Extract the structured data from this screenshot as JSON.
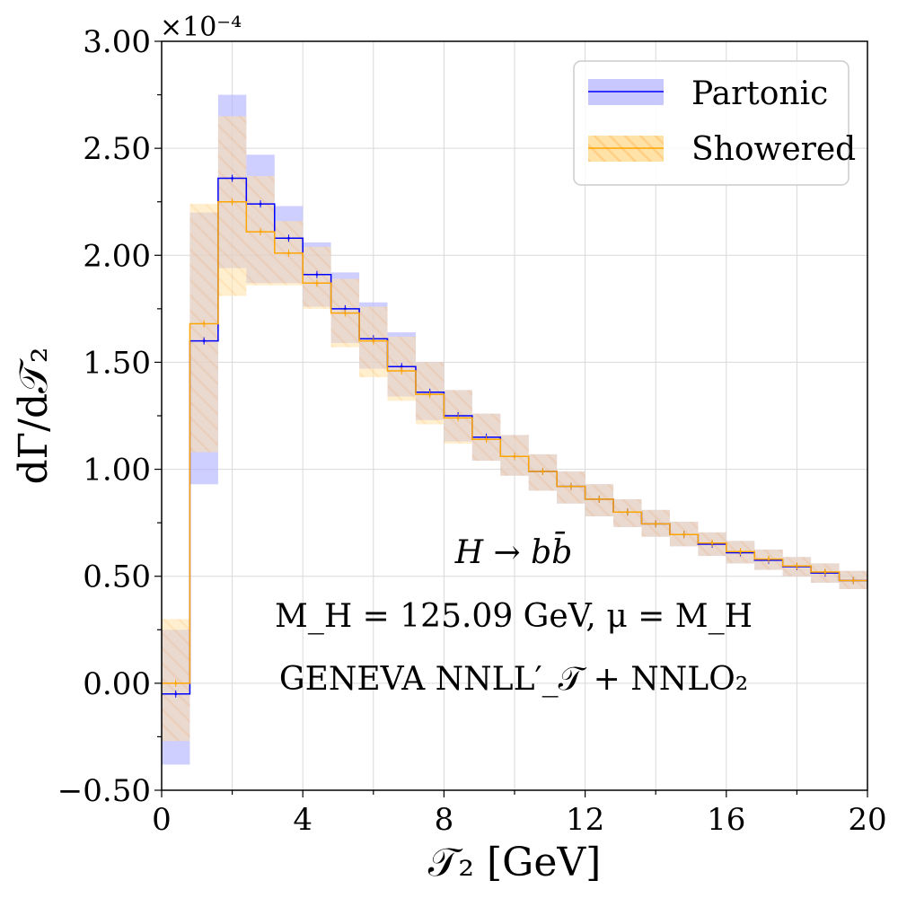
{
  "chart_data": {
    "type": "histogram",
    "multiplier_label": "×10⁻⁴",
    "xlabel": "𝒯₂   [GeV]",
    "ylabel": "dΓ/d𝒯₂",
    "xlim": [
      0,
      20
    ],
    "ylim": [
      -0.5,
      3.0
    ],
    "xticks": [
      0,
      4,
      8,
      12,
      16,
      20
    ],
    "xtick_labels": [
      "0",
      "4",
      "8",
      "12",
      "16",
      "20"
    ],
    "yticks": [
      -0.5,
      0,
      0.5,
      1.0,
      1.5,
      2.0,
      2.5,
      3.0
    ],
    "ytick_labels": [
      "−0.50",
      "0.00",
      "0.50",
      "1.00",
      "1.50",
      "2.00",
      "2.50",
      "3.00"
    ],
    "grid": true,
    "legend_position": "top-right",
    "bin_edges": [
      0,
      0.8,
      1.6,
      2.4,
      3.2,
      4.0,
      4.8,
      5.6,
      6.4,
      7.2,
      8.0,
      8.8,
      9.6,
      10.4,
      11.2,
      12.0,
      12.8,
      13.6,
      14.4,
      15.2,
      16.0,
      16.8,
      17.6,
      18.4,
      19.2,
      20.0
    ],
    "series": [
      {
        "name": "Partonic",
        "line_color": "#0000ff",
        "band_color": "#b3b3ff",
        "values": [
          -0.05,
          1.6,
          2.36,
          2.24,
          2.08,
          1.91,
          1.75,
          1.61,
          1.48,
          1.36,
          1.25,
          1.15,
          1.06,
          0.99,
          0.92,
          0.86,
          0.8,
          0.745,
          0.695,
          0.65,
          0.61,
          0.575,
          0.545,
          0.515,
          0.48
        ],
        "band_low": [
          -0.38,
          0.93,
          1.94,
          1.87,
          1.87,
          1.76,
          1.59,
          1.47,
          1.34,
          1.23,
          1.13,
          1.04,
          0.97,
          0.9,
          0.84,
          0.78,
          0.73,
          0.685,
          0.64,
          0.595,
          0.56,
          0.53,
          0.5,
          0.47,
          0.44
        ],
        "band_high": [
          0.25,
          2.2,
          2.75,
          2.47,
          2.23,
          2.06,
          1.92,
          1.78,
          1.64,
          1.5,
          1.37,
          1.26,
          1.16,
          1.07,
          0.99,
          0.93,
          0.86,
          0.81,
          0.755,
          0.705,
          0.665,
          0.625,
          0.59,
          0.56,
          0.525
        ]
      },
      {
        "name": "Showered",
        "line_color": "#ffa500",
        "band_color": "#ffd98a",
        "values": [
          0.0,
          1.68,
          2.25,
          2.11,
          2.01,
          1.87,
          1.73,
          1.6,
          1.46,
          1.35,
          1.24,
          1.14,
          1.06,
          0.99,
          0.92,
          0.86,
          0.8,
          0.745,
          0.695,
          0.655,
          0.615,
          0.58,
          0.548,
          0.52,
          0.48
        ],
        "band_low": [
          -0.27,
          1.08,
          1.81,
          1.86,
          1.86,
          1.75,
          1.57,
          1.43,
          1.32,
          1.21,
          1.12,
          1.04,
          0.97,
          0.9,
          0.84,
          0.78,
          0.73,
          0.685,
          0.64,
          0.595,
          0.56,
          0.53,
          0.5,
          0.47,
          0.44
        ],
        "band_high": [
          0.3,
          2.24,
          2.65,
          2.37,
          2.16,
          2.04,
          1.89,
          1.76,
          1.62,
          1.5,
          1.37,
          1.26,
          1.16,
          1.07,
          0.99,
          0.93,
          0.86,
          0.81,
          0.755,
          0.705,
          0.665,
          0.625,
          0.59,
          0.56,
          0.525
        ]
      }
    ],
    "annotations": [
      "H → bb̄",
      "M_H = 125.09 GeV,  μ = M_H",
      "GENEVA   NNLL′_𝒯 + NNLO₂"
    ]
  }
}
